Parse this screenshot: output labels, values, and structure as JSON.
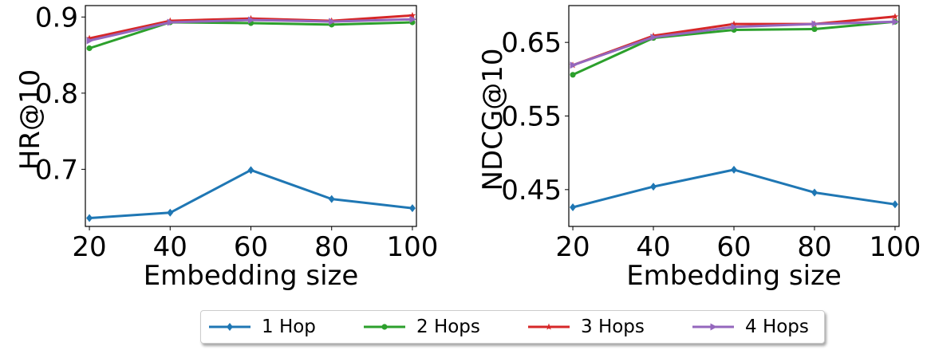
{
  "chart_data": [
    {
      "type": "line",
      "xlabel": "Embedding size",
      "ylabel": "HR@10",
      "x": [
        20,
        40,
        60,
        80,
        100
      ],
      "xlim": [
        19,
        101
      ],
      "ylim": [
        0.625,
        0.915
      ],
      "yticks": [
        "0.9",
        "0.8",
        "0.7"
      ],
      "ytick_values": [
        0.9,
        0.8,
        0.7
      ],
      "xticks": [
        "20",
        "40",
        "60",
        "80",
        "100"
      ],
      "series": [
        {
          "name": "1 Hop",
          "color": "#1f77b4",
          "marker": "diamond",
          "values": [
            0.636,
            0.643,
            0.699,
            0.661,
            0.649
          ]
        },
        {
          "name": "2 Hops",
          "color": "#2ca02c",
          "marker": "circle",
          "values": [
            0.859,
            0.893,
            0.892,
            0.89,
            0.893
          ]
        },
        {
          "name": "3 Hops",
          "color": "#d62728",
          "marker": "star",
          "values": [
            0.872,
            0.895,
            0.898,
            0.895,
            0.902
          ]
        },
        {
          "name": "4 Hops",
          "color": "#9467bd",
          "marker": "triangle-right",
          "values": [
            0.869,
            0.893,
            0.896,
            0.894,
            0.897
          ]
        }
      ]
    },
    {
      "type": "line",
      "xlabel": "Embedding size",
      "ylabel": "NDCG@10",
      "x": [
        20,
        40,
        60,
        80,
        100
      ],
      "xlim": [
        19,
        101
      ],
      "ylim": [
        0.4,
        0.7
      ],
      "yticks": [
        "0.65",
        "0.55",
        "0.45"
      ],
      "ytick_values": [
        0.65,
        0.55,
        0.45
      ],
      "xticks": [
        "20",
        "40",
        "60",
        "80",
        "100"
      ],
      "series": [
        {
          "name": "1 Hop",
          "color": "#1f77b4",
          "marker": "diamond",
          "values": [
            0.426,
            0.454,
            0.477,
            0.446,
            0.43
          ]
        },
        {
          "name": "2 Hops",
          "color": "#2ca02c",
          "marker": "circle",
          "values": [
            0.606,
            0.656,
            0.667,
            0.668,
            0.678
          ]
        },
        {
          "name": "3 Hops",
          "color": "#d62728",
          "marker": "star",
          "values": [
            0.619,
            0.659,
            0.675,
            0.675,
            0.685
          ]
        },
        {
          "name": "4 Hops",
          "color": "#9467bd",
          "marker": "triangle-right",
          "values": [
            0.619,
            0.657,
            0.671,
            0.675,
            0.678
          ]
        }
      ]
    }
  ],
  "legend": {
    "placement": "bottom-center",
    "items": [
      {
        "label": "1 Hop",
        "color": "#1f77b4",
        "marker": "diamond"
      },
      {
        "label": "2 Hops",
        "color": "#2ca02c",
        "marker": "circle"
      },
      {
        "label": "3 Hops",
        "color": "#d62728",
        "marker": "star"
      },
      {
        "label": "4 Hops",
        "color": "#9467bd",
        "marker": "triangle-right"
      }
    ]
  }
}
